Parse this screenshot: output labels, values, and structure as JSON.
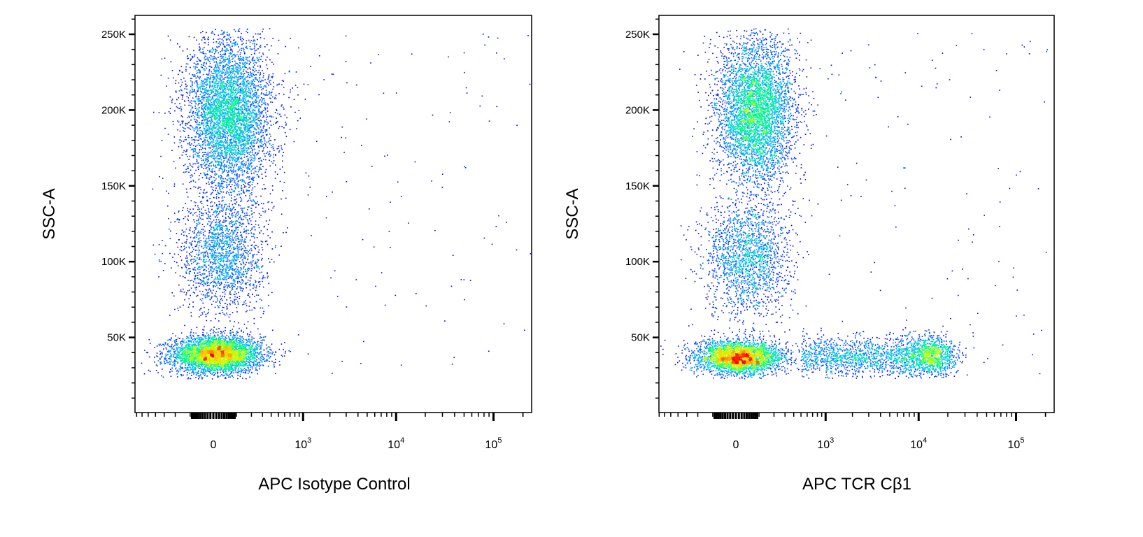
{
  "chart_data": [
    {
      "type": "scatter",
      "subtype": "density-dot-plot",
      "xlabel": "APC  Isotype Control",
      "ylabel": "SSC-A",
      "x_scale": "biexponential",
      "xlim": [
        -730,
        245000
      ],
      "ylim": [
        0,
        263000
      ],
      "x_ticks": [
        {
          "label": "0",
          "value": 0
        },
        {
          "label": "10",
          "exp": "3",
          "value": 1000
        },
        {
          "label": "10",
          "exp": "4",
          "value": 10000
        },
        {
          "label": "10",
          "exp": "5",
          "value": 100000
        }
      ],
      "y_ticks": [
        {
          "label": "50K",
          "value": 50000
        },
        {
          "label": "100K",
          "value": 100000
        },
        {
          "label": "150K",
          "value": 150000
        },
        {
          "label": "200K",
          "value": 200000
        },
        {
          "label": "250K",
          "value": 250000
        }
      ],
      "grid": false,
      "colormap": [
        "#0000ff",
        "#00b4ff",
        "#00ff80",
        "#c8ff00",
        "#ffc800",
        "#ff0000"
      ],
      "populations": [
        {
          "kind": "gaussian",
          "x": 10,
          "y": 39000,
          "x_sd_decades": 0.23,
          "y_sd": 6000,
          "n": 4200
        },
        {
          "kind": "gaussian",
          "x": 30,
          "y": 105000,
          "x_sd_decades": 0.22,
          "y_sd": 20000,
          "n": 1900
        },
        {
          "kind": "gaussian",
          "x": 60,
          "y": 197000,
          "x_sd_decades": 0.22,
          "y_sd": 26000,
          "n": 5000
        },
        {
          "kind": "uniform",
          "x_range": [
            1000,
            240000
          ],
          "y_range": [
            25000,
            252000
          ],
          "n": 110
        }
      ]
    },
    {
      "type": "scatter",
      "subtype": "density-dot-plot",
      "xlabel": "APC TCR Cβ1",
      "ylabel": "SSC-A",
      "x_scale": "biexponential",
      "xlim": [
        -730,
        245000
      ],
      "ylim": [
        0,
        263000
      ],
      "x_ticks": [
        {
          "label": "0",
          "value": 0
        },
        {
          "label": "10",
          "exp": "3",
          "value": 1000
        },
        {
          "label": "10",
          "exp": "4",
          "value": 10000
        },
        {
          "label": "10",
          "exp": "5",
          "value": 100000
        }
      ],
      "y_ticks": [
        {
          "label": "50K",
          "value": 50000
        },
        {
          "label": "100K",
          "value": 100000
        },
        {
          "label": "150K",
          "value": 150000
        },
        {
          "label": "200K",
          "value": 200000
        },
        {
          "label": "250K",
          "value": 250000
        }
      ],
      "grid": false,
      "colormap": [
        "#0000ff",
        "#00b4ff",
        "#00ff80",
        "#c8ff00",
        "#ffc800",
        "#ff0000"
      ],
      "populations": [
        {
          "kind": "gaussian",
          "x": 10,
          "y": 37000,
          "x_sd_decades": 0.22,
          "y_sd": 5500,
          "n": 3300
        },
        {
          "kind": "band",
          "x_range": [
            500,
            9000
          ],
          "y": 38000,
          "y_sd": 6500,
          "n": 1300
        },
        {
          "kind": "gaussian",
          "x": 13000,
          "y": 38000,
          "x_sd_decades": 0.13,
          "y_sd": 6500,
          "n": 1200
        },
        {
          "kind": "gaussian",
          "x": 40,
          "y": 102000,
          "x_sd_decades": 0.22,
          "y_sd": 20000,
          "n": 1900
        },
        {
          "kind": "gaussian",
          "x": 80,
          "y": 200000,
          "x_sd_decades": 0.2,
          "y_sd": 24000,
          "n": 4600
        },
        {
          "kind": "uniform",
          "x_range": [
            1000,
            240000
          ],
          "y_range": [
            25000,
            252000
          ],
          "n": 110
        }
      ]
    }
  ]
}
